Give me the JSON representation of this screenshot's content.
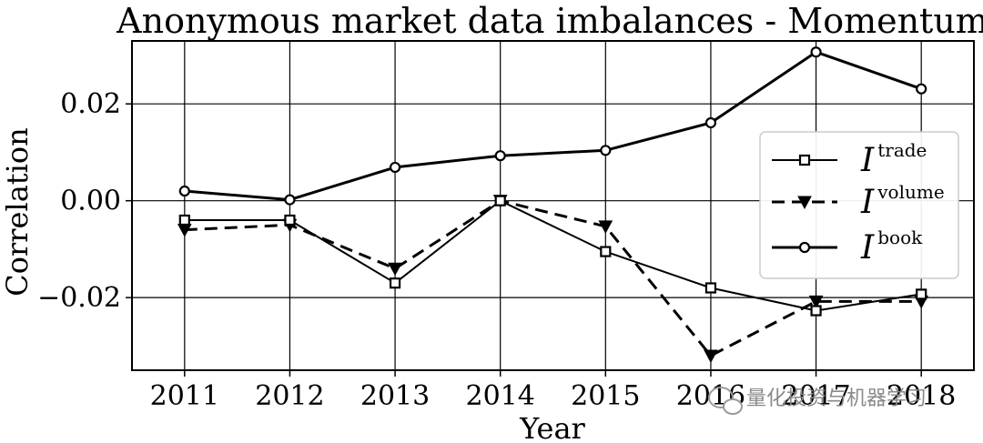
{
  "chart_data": {
    "type": "line",
    "title": "Anonymous market data imbalances - Momentum",
    "xlabel": "Year",
    "ylabel": "Correlation",
    "x": [
      2011,
      2012,
      2013,
      2014,
      2015,
      2016,
      2017,
      2018
    ],
    "xticks": [
      "2011",
      "2012",
      "2013",
      "2014",
      "2015",
      "2016",
      "2017",
      "2018"
    ],
    "yticks": [
      -0.02,
      0.0,
      0.02
    ],
    "ytick_labels": [
      "−0.02",
      "0.00",
      "0.02"
    ],
    "xlim": [
      2010.5,
      2018.5
    ],
    "ylim": [
      -0.035,
      0.033
    ],
    "grid": true,
    "legend_position": "right",
    "series": [
      {
        "name": "I",
        "sup": "trade",
        "marker": "square",
        "linestyle": "solid",
        "linewidth": 2.0,
        "values": [
          -0.004,
          -0.004,
          -0.017,
          0.0,
          -0.0105,
          -0.018,
          -0.0227,
          -0.0193
        ]
      },
      {
        "name": "I",
        "sup": "volume",
        "marker": "triangle-down",
        "linestyle": "dashed",
        "linewidth": 3.0,
        "values": [
          -0.006,
          -0.005,
          -0.014,
          0.0,
          -0.0053,
          -0.032,
          -0.0208,
          -0.0208
        ]
      },
      {
        "name": "I",
        "sup": "book",
        "marker": "circle",
        "linestyle": "solid",
        "linewidth": 3.0,
        "values": [
          0.002,
          0.0002,
          0.0069,
          0.0093,
          0.0104,
          0.0161,
          0.0307,
          0.0231
        ]
      }
    ]
  },
  "watermark": {
    "text": "量化投资与机器学习"
  },
  "colors": {
    "line": "#000000",
    "grid": "#000000",
    "background": "#ffffff",
    "legend_border": "#cccccc"
  }
}
